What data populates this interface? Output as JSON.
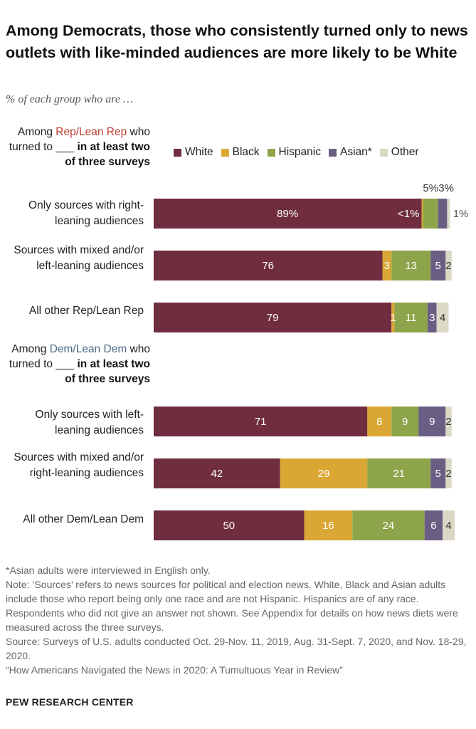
{
  "title": "Among Democrats, those who consistently turned only to news outlets with like-minded audiences are more likely to be White",
  "subtitle": "% of each group who are …",
  "groups": {
    "rep": {
      "pre": "Among ",
      "party": "Rep/Lean Rep",
      "mid": " who turned to ___ ",
      "bold": "in at least two of three surveys"
    },
    "dem": {
      "pre": "Among ",
      "party": "Dem/Lean Dem",
      "mid": " who turned to ___ ",
      "bold": "in at least two of three surveys"
    }
  },
  "rows": {
    "r1": "Only sources with right-leaning audiences",
    "r2": "Sources with mixed and/or left-leaning audiences",
    "r3": "All other Rep/Lean Rep",
    "r4": "Only sources with left-leaning audiences",
    "r5": "Sources with mixed and/or right-leaning audiences",
    "r6": "All other Dem/Lean Dem"
  },
  "legend": [
    "White",
    "Black",
    "Hispanic",
    "Asian*",
    "Other"
  ],
  "colors": {
    "White": "#6f2d3f",
    "Black": "#dba734",
    "Hispanic": "#8da44a",
    "Asian*": "#6b5e85",
    "Other": "#dbd8c6"
  },
  "chart_data": {
    "type": "bar",
    "orientation": "horizontal",
    "stacked": true,
    "categories": [
      "Only sources with right-leaning audiences",
      "Sources with mixed and/or left-leaning audiences",
      "All other Rep/Lean Rep",
      "Only sources with left-leaning audiences",
      "Sources with mixed and/or right-leaning audiences",
      "All other Dem/Lean Dem"
    ],
    "series": [
      {
        "name": "White",
        "values": [
          89,
          76,
          79,
          71,
          42,
          50
        ]
      },
      {
        "name": "Black",
        "values": [
          0.5,
          3,
          1,
          8,
          29,
          16
        ]
      },
      {
        "name": "Hispanic",
        "values": [
          5,
          13,
          11,
          9,
          21,
          24
        ]
      },
      {
        "name": "Asian*",
        "values": [
          3,
          5,
          3,
          9,
          5,
          6
        ]
      },
      {
        "name": "Other",
        "values": [
          1,
          2,
          4,
          2,
          2,
          4
        ]
      }
    ],
    "labels": [
      [
        "89%",
        "<1%",
        "5%",
        "3%",
        "1%"
      ],
      [
        "76",
        "3",
        "13",
        "5",
        "2"
      ],
      [
        "79",
        "1",
        "11",
        "3",
        "4"
      ],
      [
        "71",
        "8",
        "9",
        "9",
        "2"
      ],
      [
        "42",
        "29",
        "21",
        "5",
        "2"
      ],
      [
        "50",
        "16",
        "24",
        "6",
        "4"
      ]
    ],
    "xlim": [
      0,
      100
    ],
    "unit": "%"
  },
  "notes": [
    "*Asian adults were interviewed in English only.",
    "Note:  ‘Sources’ refers to news sources for political and election news. White, Black and Asian adults include those who report being only one race and are not Hispanic. Hispanics are of any race. Respondents who did not give an answer not shown. See Appendix for details on how news diets were measured across the three surveys.",
    "Source: Surveys of U.S. adults conducted Oct. 29-Nov. 11, 2019, Aug. 31-Sept. 7, 2020, and Nov. 18-29, 2020.",
    "“How Americans Navigated the News in 2020: A Tumultuous Year in Review”"
  ],
  "brand": "PEW RESEARCH CENTER"
}
